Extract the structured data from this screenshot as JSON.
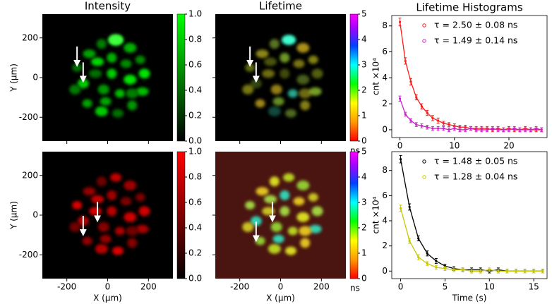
{
  "chart_data": [
    {
      "type": "image",
      "title": "Intensity",
      "ylabel": "Y (μm)",
      "xlim": [
        -320,
        320
      ],
      "ylim": [
        -320,
        320
      ],
      "xticks": [
        -200,
        0,
        200
      ],
      "yticks": [
        -200,
        0,
        200
      ],
      "colormap": "green",
      "background": "#000000",
      "colorbar_lim": [
        0,
        1
      ],
      "colorbar_ticks": [
        {
          "value": 0,
          "label": "0.0"
        },
        {
          "value": 0.2,
          "label": "0.2"
        },
        {
          "value": 0.4,
          "label": "0.4"
        },
        {
          "value": 0.6,
          "label": "0.6"
        },
        {
          "value": 0.8,
          "label": "0.8"
        },
        {
          "value": 1,
          "label": "1.0"
        }
      ]
    },
    {
      "type": "image",
      "title": "Lifetime",
      "xlim": [
        -320,
        320
      ],
      "ylim": [
        -320,
        320
      ],
      "xticks": [
        -200,
        0,
        200
      ],
      "yticks": [
        -200,
        0,
        200
      ],
      "colormap": "lifetime",
      "background": "#000000",
      "colorbar_lim": [
        0,
        5
      ],
      "colorbar_ticks": [
        0,
        1,
        2,
        3,
        4,
        5
      ],
      "colorbar_label": "ns"
    },
    {
      "type": "scatter",
      "title": "Lifetime Histograms",
      "ylabel": "cnt ×10⁴",
      "xlim": [
        -1.5,
        27
      ],
      "ylim": [
        -0.6,
        8.8
      ],
      "xticks": [
        0,
        10,
        20
      ],
      "yticks": [
        0,
        2,
        4,
        6,
        8
      ],
      "legend": "upper right",
      "x": [
        0,
        1,
        2,
        3,
        4,
        5,
        6,
        7,
        8,
        9,
        10,
        11,
        12,
        13,
        14,
        15,
        16,
        17,
        18,
        19,
        20,
        21,
        22,
        23,
        24,
        25,
        26
      ],
      "series": [
        {
          "name": "τ = 2.50 ± 0.08 ns",
          "color": "#ff1a1a",
          "values": [
            8.3,
            5.3,
            3.7,
            2.5,
            1.8,
            1.3,
            0.9,
            0.7,
            0.5,
            0.4,
            0.3,
            0.2,
            0.2,
            0.1,
            0.1,
            0.1,
            0.1,
            0,
            0.1,
            0,
            0.1,
            0,
            0,
            0.1,
            0,
            0,
            0
          ],
          "errors": [
            0.3,
            0.25,
            0.25,
            0.2,
            0.2,
            0.2,
            0.2,
            0.2,
            0.15,
            0.15,
            0.15,
            0.15,
            0.15,
            0.15,
            0.15,
            0.15,
            0.15,
            0.15,
            0.15,
            0.15,
            0.15,
            0.15,
            0.15,
            0.15,
            0.15,
            0.15,
            0.15
          ]
        },
        {
          "name": "τ = 1.49 ± 0.14 ns",
          "color": "#cc22cc",
          "values": [
            2.4,
            1.2,
            0.7,
            0.4,
            0.3,
            0.2,
            0.1,
            0.1,
            0.1,
            0,
            0.1,
            0,
            0,
            0.1,
            0,
            0,
            0,
            0.1,
            0,
            0,
            0,
            0.1,
            0,
            0,
            0,
            0.1,
            0
          ],
          "errors": [
            0.2,
            0.15,
            0.15,
            0.15,
            0.15,
            0.15,
            0.15,
            0.15,
            0.15,
            0.15,
            0.15,
            0.15,
            0.15,
            0.15,
            0.15,
            0.15,
            0.15,
            0.15,
            0.15,
            0.15,
            0.15,
            0.15,
            0.15,
            0.15,
            0.15,
            0.15,
            0.15
          ]
        }
      ]
    },
    {
      "type": "image",
      "xlabel": "X (μm)",
      "ylabel": "Y (μm)",
      "xlim": [
        -320,
        320
      ],
      "ylim": [
        -320,
        320
      ],
      "xticks": [
        -200,
        0,
        200
      ],
      "yticks": [
        -200,
        0,
        200
      ],
      "colormap": "red",
      "background": "#000000",
      "colorbar_lim": [
        0,
        1
      ],
      "colorbar_ticks": [
        {
          "value": 0,
          "label": "0.0"
        },
        {
          "value": 0.2,
          "label": "0.2"
        },
        {
          "value": 0.4,
          "label": "0.4"
        },
        {
          "value": 0.6,
          "label": "0.6"
        },
        {
          "value": 0.8,
          "label": "0.8"
        },
        {
          "value": 1,
          "label": "1.0"
        }
      ]
    },
    {
      "type": "image",
      "xlabel": "X (μm)",
      "xlim": [
        -320,
        320
      ],
      "ylim": [
        -320,
        320
      ],
      "xticks": [
        -200,
        0,
        200
      ],
      "yticks": [
        -200,
        0,
        200
      ],
      "colormap": "lifetime",
      "background": "#4a1410",
      "colorbar_lim": [
        0,
        5
      ],
      "colorbar_ticks": [
        0,
        1,
        2,
        3,
        4,
        5
      ],
      "colorbar_label": "ns"
    },
    {
      "type": "scatter",
      "xlabel": "Time (s)",
      "ylabel": "cnt ×10⁴",
      "xlim": [
        -1,
        16.5
      ],
      "ylim": [
        -0.6,
        9.5
      ],
      "xticks": [
        0,
        5,
        10,
        15
      ],
      "yticks": [
        0,
        2,
        4,
        6,
        8
      ],
      "legend": "upper right",
      "x": [
        0,
        1,
        2,
        3,
        4,
        5,
        6,
        7,
        8,
        9,
        10,
        11,
        12,
        13,
        14,
        15,
        16
      ],
      "series": [
        {
          "name": "τ = 1.48 ± 0.05 ns",
          "color": "#000000",
          "values": [
            8.9,
            5.1,
            2.6,
            1.4,
            0.8,
            0.4,
            0.2,
            0.1,
            0.1,
            0.1,
            0,
            0.1,
            0,
            0,
            0,
            0,
            0
          ],
          "errors": [
            0.3,
            0.25,
            0.2,
            0.2,
            0.2,
            0.15,
            0.15,
            0.15,
            0.15,
            0.15,
            0.15,
            0.15,
            0.15,
            0.15,
            0.15,
            0.15,
            0.15
          ]
        },
        {
          "name": "τ = 1.28 ± 0.04 ns",
          "color": "#c8c800",
          "values": [
            5.0,
            2.4,
            1.1,
            0.6,
            0.3,
            0.2,
            0.1,
            0.1,
            0,
            0,
            0.1,
            0,
            0,
            0,
            0,
            0,
            0
          ],
          "errors": [
            0.25,
            0.2,
            0.2,
            0.15,
            0.15,
            0.15,
            0.15,
            0.15,
            0.15,
            0.15,
            0.15,
            0.15,
            0.15,
            0.15,
            0.15,
            0.15,
            0.15
          ]
        }
      ]
    }
  ]
}
